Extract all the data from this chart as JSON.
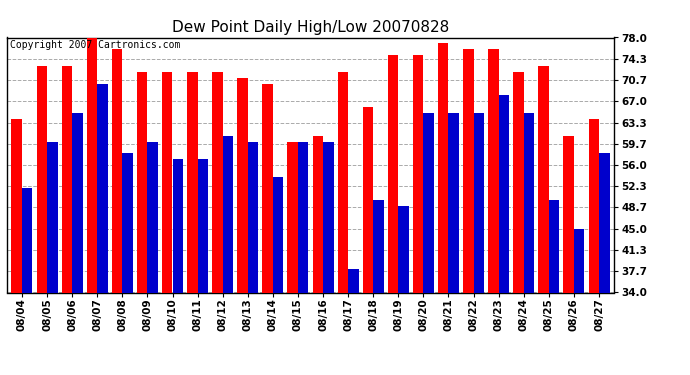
{
  "title": "Dew Point Daily High/Low 20070828",
  "copyright": "Copyright 2007 Cartronics.com",
  "dates": [
    "08/04",
    "08/05",
    "08/06",
    "08/07",
    "08/08",
    "08/09",
    "08/10",
    "08/11",
    "08/12",
    "08/13",
    "08/14",
    "08/15",
    "08/16",
    "08/17",
    "08/18",
    "08/19",
    "08/20",
    "08/21",
    "08/22",
    "08/23",
    "08/24",
    "08/25",
    "08/26",
    "08/27"
  ],
  "highs": [
    64,
    73,
    73,
    78,
    76,
    72,
    72,
    72,
    72,
    71,
    70,
    60,
    61,
    72,
    66,
    75,
    75,
    77,
    76,
    76,
    72,
    73,
    61,
    64
  ],
  "lows": [
    52,
    60,
    65,
    70,
    58,
    60,
    57,
    57,
    61,
    60,
    54,
    60,
    60,
    38,
    50,
    49,
    65,
    65,
    65,
    68,
    65,
    50,
    45,
    58
  ],
  "ymin": 34.0,
  "ymax": 78.0,
  "yticks": [
    34.0,
    37.7,
    41.3,
    45.0,
    48.7,
    52.3,
    56.0,
    59.7,
    63.3,
    67.0,
    70.7,
    74.3,
    78.0
  ],
  "high_color": "#ff0000",
  "low_color": "#0000cc",
  "background_color": "#ffffff",
  "grid_color": "#aaaaaa",
  "title_fontsize": 11,
  "tick_fontsize": 7.5,
  "copyright_fontsize": 7
}
